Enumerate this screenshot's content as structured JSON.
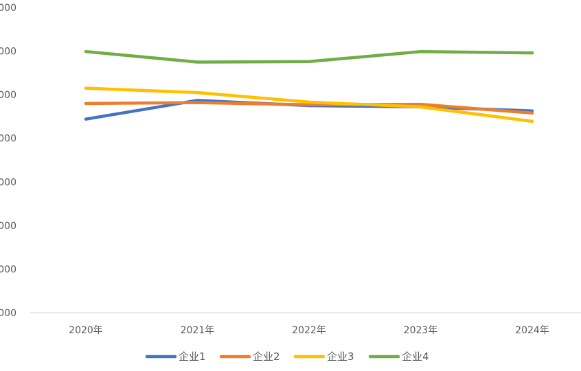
{
  "chart_data": {
    "type": "line",
    "title": "",
    "xlabel": "",
    "ylabel": "",
    "categories": [
      "2020年",
      "2021年",
      "2022年",
      "2023年",
      "2024年"
    ],
    "y_tick_labels": [
      "000",
      "000",
      "000",
      "000",
      "000",
      "000",
      "000",
      "000"
    ],
    "ylim": [
      0,
      7
    ],
    "grid": false,
    "legend_position": "bottom",
    "series": [
      {
        "name": "企业1",
        "color": "#4472C4",
        "values": [
          4.44,
          4.87,
          4.75,
          4.72,
          4.63
        ]
      },
      {
        "name": "企业2",
        "color": "#ED7D31",
        "values": [
          4.8,
          4.82,
          4.77,
          4.78,
          4.58
        ]
      },
      {
        "name": "企业3",
        "color": "#FFC000",
        "values": [
          5.15,
          5.05,
          4.83,
          4.72,
          4.39
        ]
      },
      {
        "name": "企业4",
        "color": "#70AD47",
        "values": [
          5.99,
          5.75,
          5.76,
          5.99,
          5.96
        ]
      }
    ]
  }
}
